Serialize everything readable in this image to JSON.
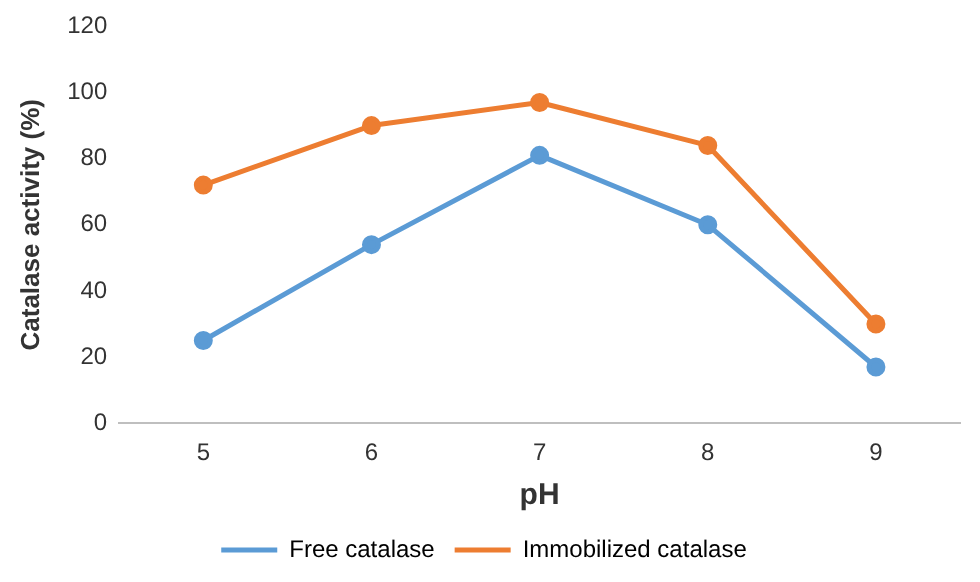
{
  "chart_data": {
    "type": "line",
    "xlabel": "pH",
    "ylabel": "Catalase activity (%)",
    "categories": [
      "5",
      "6",
      "7",
      "8",
      "9"
    ],
    "series": [
      {
        "name": "Free catalase",
        "color": "#5b9bd5",
        "values": [
          25,
          54,
          81,
          60,
          17
        ]
      },
      {
        "name": "Immobilized catalase",
        "color": "#ed7d31",
        "values": [
          72,
          90,
          97,
          84,
          30
        ]
      }
    ],
    "ylim": [
      0,
      120
    ],
    "yticks": [
      0,
      20,
      40,
      60,
      80,
      100,
      120
    ],
    "grid": false,
    "legend": "bottom",
    "marker": "circle",
    "line_style": "solid"
  }
}
